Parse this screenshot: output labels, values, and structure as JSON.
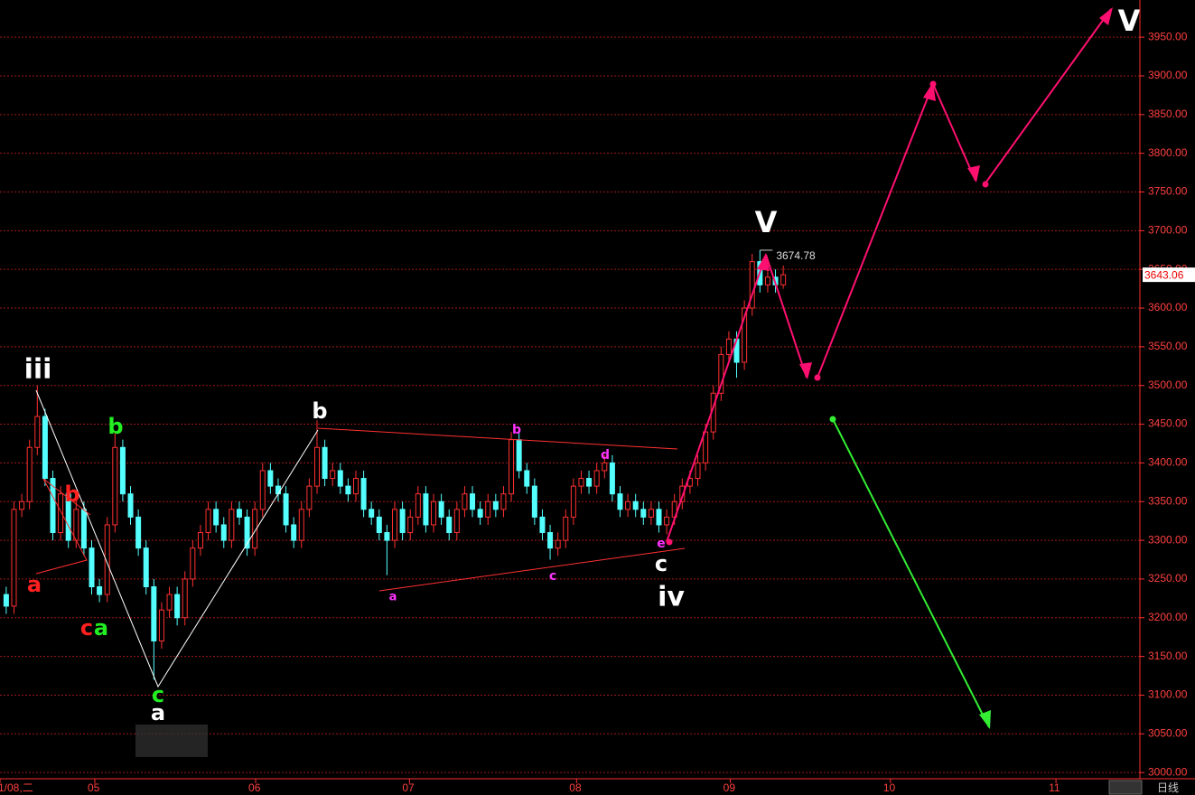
{
  "chart_data": {
    "type": "candlestick",
    "open": [
      3230,
      3215,
      3340,
      3350,
      3420,
      3460,
      3380,
      3310,
      3360,
      3300,
      3340,
      3290,
      3240,
      3230,
      3320,
      3420,
      3360,
      3330,
      3290,
      3240,
      3170,
      3210,
      3230,
      3200,
      3250,
      3290,
      3310,
      3340,
      3320,
      3300,
      3340,
      3330,
      3290,
      3340,
      3390,
      3370,
      3360,
      3320,
      3300,
      3340,
      3370,
      3420,
      3380,
      3390,
      3370,
      3360,
      3380,
      3340,
      3330,
      3310,
      3300,
      3340,
      3310,
      3330,
      3360,
      3320,
      3350,
      3330,
      3310,
      3340,
      3360,
      3340,
      3330,
      3350,
      3340,
      3360,
      3430,
      3390,
      3370,
      3330,
      3310,
      3290,
      3300,
      3330,
      3370,
      3380,
      3370,
      3390,
      3400,
      3360,
      3340,
      3350,
      3340,
      3330,
      3340,
      3320,
      3330,
      3350,
      3370,
      3380,
      3400,
      3440,
      3490,
      3540,
      3560,
      3530,
      3600,
      3660,
      3630,
      3640,
      3630
    ],
    "high": [
      3240,
      3350,
      3360,
      3430,
      3500,
      3470,
      3390,
      3370,
      3370,
      3350,
      3350,
      3300,
      3250,
      3330,
      3440,
      3430,
      3370,
      3340,
      3300,
      3250,
      3220,
      3240,
      3240,
      3260,
      3300,
      3320,
      3350,
      3350,
      3330,
      3350,
      3350,
      3340,
      3350,
      3400,
      3400,
      3380,
      3370,
      3330,
      3350,
      3380,
      3455,
      3430,
      3400,
      3400,
      3380,
      3390,
      3390,
      3350,
      3340,
      3320,
      3350,
      3350,
      3340,
      3370,
      3370,
      3360,
      3360,
      3340,
      3350,
      3370,
      3370,
      3350,
      3360,
      3360,
      3370,
      3440,
      3440,
      3400,
      3380,
      3340,
      3320,
      3310,
      3340,
      3380,
      3390,
      3390,
      3400,
      3410,
      3410,
      3370,
      3360,
      3360,
      3350,
      3350,
      3350,
      3340,
      3360,
      3380,
      3390,
      3410,
      3450,
      3500,
      3550,
      3570,
      3570,
      3610,
      3670,
      3674.78,
      3650,
      3650,
      3655
    ],
    "low": [
      3205,
      3205,
      3330,
      3340,
      3410,
      3370,
      3300,
      3300,
      3290,
      3290,
      3280,
      3230,
      3220,
      3220,
      3310,
      3350,
      3320,
      3280,
      3230,
      3120,
      3160,
      3200,
      3190,
      3190,
      3240,
      3280,
      3300,
      3310,
      3290,
      3290,
      3320,
      3280,
      3280,
      3330,
      3360,
      3350,
      3310,
      3290,
      3290,
      3330,
      3360,
      3370,
      3370,
      3360,
      3350,
      3350,
      3330,
      3320,
      3300,
      3255,
      3290,
      3300,
      3300,
      3320,
      3310,
      3310,
      3320,
      3300,
      3300,
      3330,
      3330,
      3320,
      3320,
      3330,
      3330,
      3350,
      3380,
      3360,
      3320,
      3300,
      3275,
      3280,
      3290,
      3320,
      3360,
      3360,
      3360,
      3380,
      3350,
      3330,
      3330,
      3330,
      3320,
      3320,
      3310,
      3308,
      3320,
      3340,
      3360,
      3370,
      3390,
      3430,
      3480,
      3530,
      3510,
      3520,
      3590,
      3620,
      3620,
      3620,
      3625
    ],
    "close": [
      3215,
      3340,
      3350,
      3420,
      3460,
      3380,
      3310,
      3360,
      3300,
      3340,
      3290,
      3240,
      3230,
      3320,
      3420,
      3360,
      3330,
      3290,
      3240,
      3170,
      3210,
      3230,
      3200,
      3250,
      3290,
      3310,
      3340,
      3320,
      3300,
      3340,
      3330,
      3290,
      3340,
      3390,
      3370,
      3360,
      3320,
      3300,
      3340,
      3370,
      3420,
      3380,
      3390,
      3370,
      3360,
      3380,
      3340,
      3330,
      3310,
      3300,
      3340,
      3310,
      3330,
      3360,
      3320,
      3350,
      3330,
      3310,
      3340,
      3360,
      3340,
      3330,
      3350,
      3340,
      3360,
      3430,
      3390,
      3370,
      3330,
      3310,
      3290,
      3300,
      3330,
      3370,
      3380,
      3370,
      3390,
      3400,
      3360,
      3340,
      3350,
      3340,
      3330,
      3340,
      3320,
      3330,
      3350,
      3370,
      3380,
      3400,
      3440,
      3490,
      3540,
      3560,
      3530,
      3600,
      3660,
      3630,
      3640,
      3630,
      3643.06
    ],
    "up_color": "#ff3030",
    "down_color": "#54ffff",
    "xlim": [
      -0.8,
      145.9
    ],
    "xticks": [
      {
        "value": -0.8,
        "label": "1/08,二"
      },
      {
        "value": 11.4,
        "label": "05"
      },
      {
        "value": 32.1,
        "label": "06"
      },
      {
        "value": 51.9,
        "label": "07"
      },
      {
        "value": 73.4,
        "label": "08"
      },
      {
        "value": 93.2,
        "label": "09"
      },
      {
        "value": 113.8,
        "label": "10"
      },
      {
        "value": 135.1,
        "label": "11"
      }
    ],
    "ylim": [
      2992,
      3998
    ],
    "yticks": [
      {
        "value": 3000,
        "label": "3000.00"
      },
      {
        "value": 3050,
        "label": "3050.00"
      },
      {
        "value": 3100,
        "label": "3100.00"
      },
      {
        "value": 3150,
        "label": "3150.00"
      },
      {
        "value": 3200,
        "label": "3200.00"
      },
      {
        "value": 3250,
        "label": "3250.00"
      },
      {
        "value": 3300,
        "label": "3300.00"
      },
      {
        "value": 3350,
        "label": "3350.00"
      },
      {
        "value": 3400,
        "label": "3400.00"
      },
      {
        "value": 3450,
        "label": "3450.00"
      },
      {
        "value": 3500,
        "label": "3500.00"
      },
      {
        "value": 3550,
        "label": "3550.00"
      },
      {
        "value": 3600,
        "label": "3600.00"
      },
      {
        "value": 3650,
        "label": "3650.00"
      },
      {
        "value": 3700,
        "label": "3700.00"
      },
      {
        "value": 3750,
        "label": "3750.00"
      },
      {
        "value": 3800,
        "label": "3800.00"
      },
      {
        "value": 3850,
        "label": "3850.00"
      },
      {
        "value": 3900,
        "label": "3900.00"
      },
      {
        "value": 3950,
        "label": "3950.00"
      }
    ],
    "grid": true,
    "annotations": [
      "iii",
      "a",
      "b",
      "c",
      "a",
      "b",
      "c",
      "a",
      "b",
      "a",
      "b",
      "c",
      "d",
      "e",
      "c",
      "iv",
      "V",
      "V"
    ],
    "period": "日线"
  }
}
